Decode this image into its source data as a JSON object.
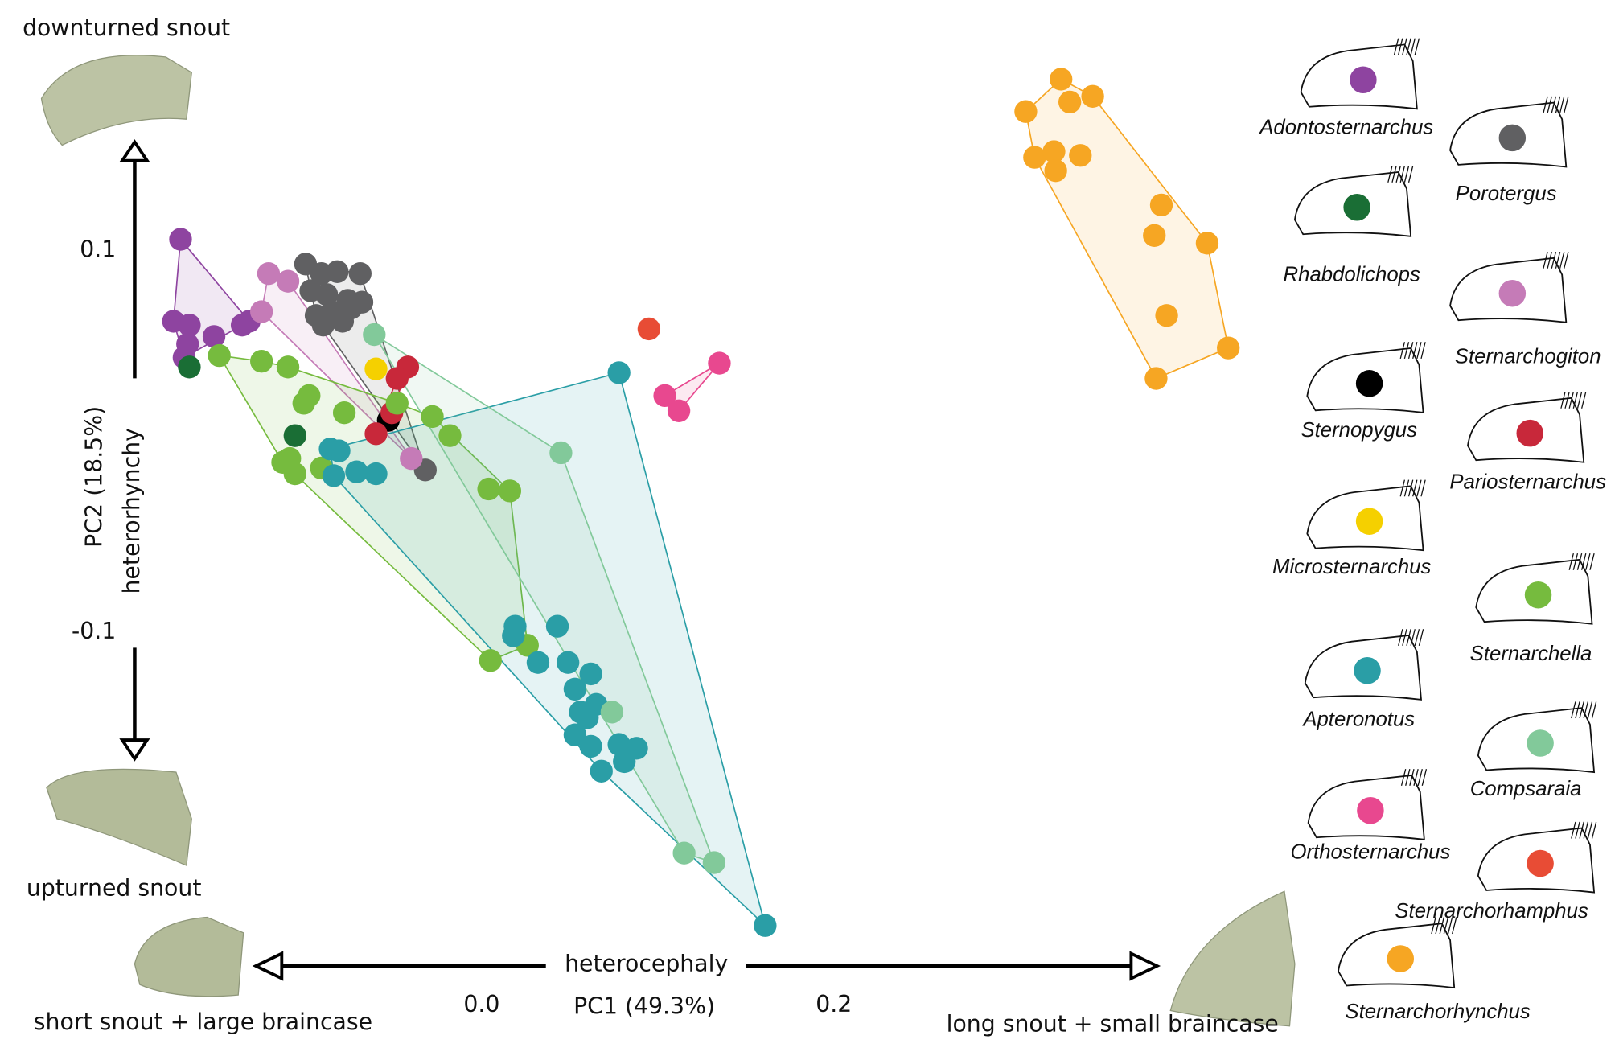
{
  "chart_data": {
    "type": "scatter",
    "x_label": "PC1 (49.3%)",
    "y_label": "PC2 (18.5%)",
    "x_axis_note": "heterocephaly",
    "y_axis_note": "heterorhynchy",
    "annotations": {
      "top": "downturned snout",
      "bottom": "upturned snout",
      "left": "short snout + large braincase",
      "right": "long snout + small braincase"
    },
    "xlim": [
      -0.18,
      0.43
    ],
    "ylim": [
      -0.26,
      0.2
    ],
    "xticks": [
      {
        "value": 0,
        "label": "0.0"
      },
      0.2
    ],
    "yticks": [
      0.1,
      -0.1
    ],
    "hulls": true,
    "series": [
      {
        "name": "Adontosternarchus",
        "color": "#8e44a0",
        "x": [
          -0.171,
          -0.175,
          -0.166,
          -0.167,
          -0.152,
          -0.136,
          -0.132,
          -0.169
        ],
        "y": [
          0.106,
          0.063,
          0.061,
          0.051,
          0.055,
          0.061,
          0.063,
          0.044
        ]
      },
      {
        "name": "Porotergus",
        "color": "#606062",
        "x": [
          -0.1,
          -0.091,
          -0.082,
          -0.069,
          -0.097,
          -0.088,
          -0.076,
          -0.068,
          -0.094,
          -0.085,
          -0.074,
          -0.09,
          -0.079,
          -0.032
        ],
        "y": [
          0.093,
          0.088,
          0.089,
          0.088,
          0.079,
          0.077,
          0.074,
          0.073,
          0.066,
          0.068,
          0.07,
          0.061,
          0.063,
          -0.015
        ]
      },
      {
        "name": "Rhabdolichops",
        "color": "#1a6e35",
        "x": [
          -0.166,
          -0.106
        ],
        "y": [
          0.039,
          0.003
        ]
      },
      {
        "name": "Sternarchogiton",
        "color": "#c57bb7",
        "x": [
          -0.121,
          -0.125,
          -0.11,
          -0.04
        ],
        "y": [
          0.088,
          0.068,
          0.084,
          -0.009
        ]
      },
      {
        "name": "Sternopygus",
        "color": "#000000",
        "x": [
          -0.053
        ],
        "y": [
          0.011
        ]
      },
      {
        "name": "Pariosternarchus",
        "color": "#c8283a",
        "x": [
          -0.042,
          -0.048,
          -0.051,
          -0.06
        ],
        "y": [
          0.039,
          0.033,
          0.015,
          0.004
        ]
      },
      {
        "name": "Microsternarchus",
        "color": "#f5d000",
        "x": [
          -0.06
        ],
        "y": [
          0.038
        ]
      },
      {
        "name": "Sternarchella",
        "color": "#76bb3e",
        "x": [
          -0.149,
          -0.125,
          -0.11,
          -0.098,
          -0.101,
          -0.109,
          -0.113,
          -0.106,
          -0.091,
          -0.078,
          -0.048,
          -0.028,
          -0.018,
          0.004,
          0.016,
          0.005,
          0.026
        ],
        "y": [
          0.045,
          0.042,
          0.039,
          0.024,
          0.02,
          -0.009,
          -0.011,
          -0.017,
          -0.014,
          0.015,
          0.02,
          0.013,
          0.003,
          -0.025,
          -0.026,
          -0.115,
          -0.107
        ]
      },
      {
        "name": "Apteronotus",
        "color": "#2a9ea6",
        "x": [
          -0.086,
          -0.081,
          -0.084,
          -0.071,
          -0.06,
          0.078,
          0.019,
          0.018,
          0.043,
          0.049,
          0.062,
          0.053,
          0.065,
          0.056,
          0.053,
          0.062,
          0.078,
          0.088,
          0.081,
          0.068,
          0.161,
          0.032,
          0.06
        ],
        "y": [
          -0.004,
          -0.005,
          -0.018,
          -0.016,
          -0.017,
          0.036,
          -0.097,
          -0.102,
          -0.097,
          -0.116,
          -0.122,
          -0.13,
          -0.138,
          -0.142,
          -0.154,
          -0.16,
          -0.159,
          -0.161,
          -0.168,
          -0.173,
          -0.254,
          -0.116,
          -0.145
        ]
      },
      {
        "name": "Compsaraia",
        "color": "#82c99a",
        "x": [
          -0.061,
          0.045,
          0.074,
          0.115,
          0.132
        ],
        "y": [
          0.056,
          -0.006,
          -0.142,
          -0.216,
          -0.221
        ]
      },
      {
        "name": "Orthosternarchus",
        "color": "#e8488f",
        "x": [
          0.135,
          0.104,
          0.112
        ],
        "y": [
          0.041,
          0.024,
          0.016
        ]
      },
      {
        "name": "Sternarchorhamphus",
        "color": "#e84c35",
        "x": [
          0.095
        ],
        "y": [
          0.059
        ]
      },
      {
        "name": "Sternarchorhynchus",
        "color": "#f6a623",
        "x": [
          0.329,
          0.347,
          0.334,
          0.309,
          0.314,
          0.325,
          0.34,
          0.326,
          0.386,
          0.382,
          0.412,
          0.389,
          0.424,
          0.383
        ],
        "y": [
          0.19,
          0.181,
          0.178,
          0.173,
          0.149,
          0.152,
          0.15,
          0.142,
          0.124,
          0.108,
          0.104,
          0.066,
          0.049,
          0.033
        ]
      }
    ]
  }
}
